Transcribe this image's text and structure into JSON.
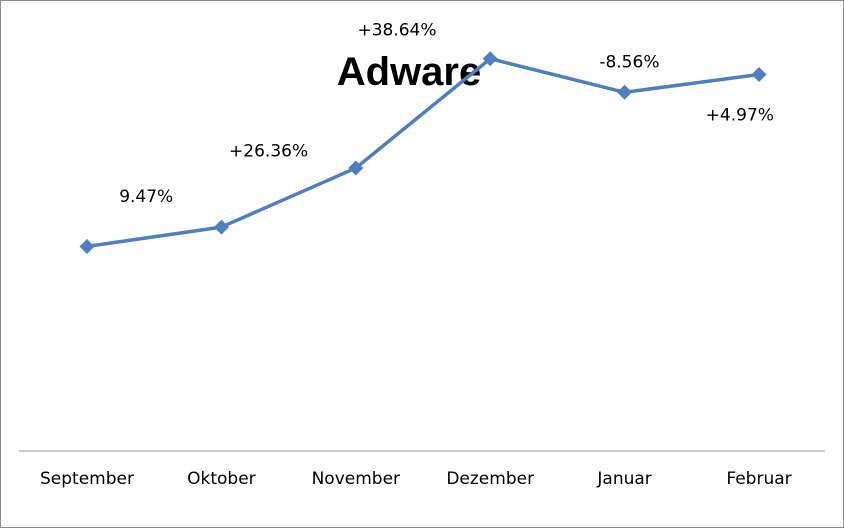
{
  "chart_data": {
    "type": "line",
    "title": "Adware",
    "categories": [
      "September",
      "Oktober",
      "November",
      "Dezember",
      "Januar",
      "Februar"
    ],
    "series": [
      {
        "values": [
          100,
          109.47,
          138.33,
          191.78,
          175.36,
          184.07
        ],
        "color": "#4f7fbf",
        "marker": "diamond"
      }
    ],
    "data_labels": [
      "9.47%",
      "+26.36%",
      "+38.64%",
      "-8.56%",
      "+4.97%"
    ],
    "ylim": [
      0,
      220
    ],
    "grid": false,
    "legend": "none"
  }
}
